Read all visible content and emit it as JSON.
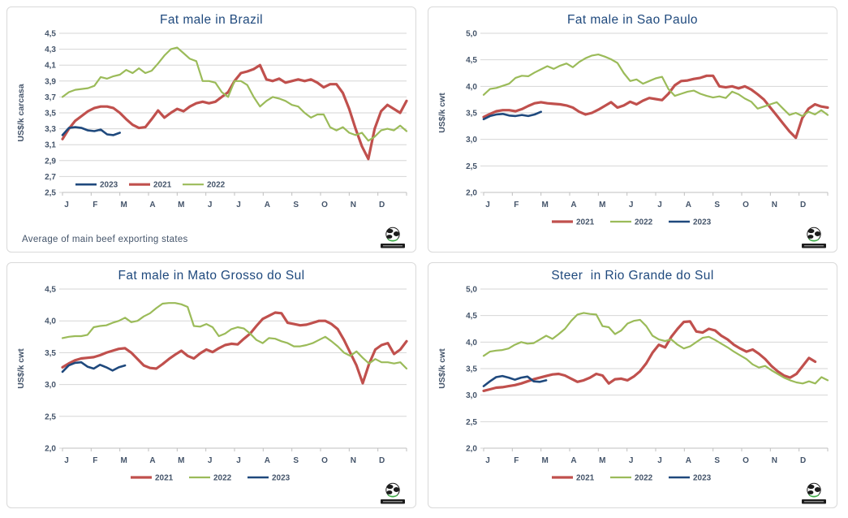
{
  "footnote": "Average of main beef exporting states",
  "colors": {
    "2021": "#c0504d",
    "2022": "#9bbb59",
    "2023": "#1f497d",
    "grid": "#d6d6d6",
    "axis_line": "#bfbfbf",
    "axis_text": "#44546a",
    "title_text": "#1f497d",
    "panel_border": "#d9d9d9",
    "logo_banner": "#1c1c1c",
    "logo_green": "#3fae49"
  },
  "months": [
    "J",
    "F",
    "M",
    "A",
    "M",
    "J",
    "J",
    "A",
    "S",
    "O",
    "N",
    "D"
  ],
  "chart_data": [
    {
      "type": "line",
      "title": "Fat male in Brazil",
      "ylabel": "US$/k carcasa",
      "ylim": [
        2.5,
        4.5
      ],
      "ytick_step": 0.2,
      "yticks": [
        "2,5",
        "2,7",
        "2,9",
        "3,1",
        "3,3",
        "3,5",
        "3,7",
        "3,9",
        "4,1",
        "4,3",
        "4,5"
      ],
      "grid": true,
      "legend_position": "inside-bottom-left",
      "legend": [
        "2023",
        "2021",
        "2022"
      ],
      "x_categories": [
        "J",
        "F",
        "M",
        "A",
        "M",
        "J",
        "J",
        "A",
        "S",
        "O",
        "N",
        "D"
      ],
      "series": [
        {
          "name": "2021",
          "values": [
            3.17,
            3.3,
            3.4,
            3.46,
            3.52,
            3.56,
            3.58,
            3.58,
            3.56,
            3.5,
            3.42,
            3.35,
            3.31,
            3.32,
            3.42,
            3.53,
            3.44,
            3.5,
            3.55,
            3.52,
            3.58,
            3.62,
            3.64,
            3.62,
            3.64,
            3.7,
            3.76,
            3.9,
            4.0,
            4.02,
            4.05,
            4.1,
            3.92,
            3.9,
            3.93,
            3.88,
            3.9,
            3.92,
            3.9,
            3.92,
            3.88,
            3.82,
            3.86,
            3.86,
            3.75,
            3.55,
            3.3,
            3.08,
            2.92,
            3.3,
            3.52,
            3.6,
            3.55,
            3.5,
            3.65
          ]
        },
        {
          "name": "2022",
          "values": [
            3.7,
            3.76,
            3.79,
            3.8,
            3.81,
            3.84,
            3.95,
            3.93,
            3.96,
            3.98,
            4.04,
            4.0,
            4.06,
            4.0,
            4.03,
            4.12,
            4.22,
            4.3,
            4.32,
            4.25,
            4.18,
            4.15,
            3.9,
            3.9,
            3.88,
            3.76,
            3.7,
            3.9,
            3.9,
            3.85,
            3.7,
            3.58,
            3.65,
            3.7,
            3.68,
            3.65,
            3.6,
            3.58,
            3.5,
            3.44,
            3.48,
            3.48,
            3.32,
            3.28,
            3.32,
            3.25,
            3.22,
            3.25,
            3.15,
            3.2,
            3.28,
            3.3,
            3.28,
            3.34,
            3.27
          ]
        },
        {
          "name": "2023",
          "values": [
            3.22,
            3.31,
            3.32,
            3.31,
            3.28,
            3.27,
            3.29,
            3.23,
            3.22,
            3.25
          ]
        }
      ]
    },
    {
      "type": "line",
      "title": "Fat male in Sao Paulo",
      "ylabel": "US$/k cwt",
      "ylim": [
        2.0,
        5.0
      ],
      "ytick_step": 0.5,
      "yticks": [
        "2,0",
        "2,5",
        "3,0",
        "3,5",
        "4,0",
        "4,5",
        "5,0"
      ],
      "grid": true,
      "legend_position": "below-center",
      "legend": [
        "2021",
        "2022",
        "2023"
      ],
      "x_categories": [
        "J",
        "F",
        "M",
        "A",
        "M",
        "J",
        "J",
        "A",
        "S",
        "O",
        "N",
        "D"
      ],
      "series": [
        {
          "name": "2021",
          "values": [
            3.42,
            3.48,
            3.53,
            3.55,
            3.55,
            3.53,
            3.57,
            3.63,
            3.68,
            3.7,
            3.68,
            3.67,
            3.66,
            3.64,
            3.6,
            3.52,
            3.47,
            3.5,
            3.56,
            3.63,
            3.7,
            3.6,
            3.64,
            3.71,
            3.66,
            3.73,
            3.78,
            3.76,
            3.74,
            3.86,
            4.02,
            4.1,
            4.11,
            4.14,
            4.16,
            4.2,
            4.2,
            4.0,
            3.98,
            4.0,
            3.96,
            4.0,
            3.94,
            3.85,
            3.75,
            3.6,
            3.45,
            3.3,
            3.15,
            3.03,
            3.4,
            3.58,
            3.66,
            3.62,
            3.6
          ]
        },
        {
          "name": "2022",
          "values": [
            3.84,
            3.95,
            3.97,
            4.01,
            4.05,
            4.16,
            4.2,
            4.19,
            4.26,
            4.32,
            4.38,
            4.33,
            4.39,
            4.43,
            4.36,
            4.46,
            4.53,
            4.58,
            4.6,
            4.56,
            4.51,
            4.44,
            4.25,
            4.1,
            4.13,
            4.05,
            4.1,
            4.15,
            4.18,
            3.95,
            3.82,
            3.86,
            3.9,
            3.92,
            3.86,
            3.82,
            3.79,
            3.81,
            3.78,
            3.9,
            3.85,
            3.77,
            3.71,
            3.58,
            3.62,
            3.66,
            3.7,
            3.58,
            3.46,
            3.5,
            3.44,
            3.52,
            3.47,
            3.55,
            3.46
          ]
        },
        {
          "name": "2023",
          "values": [
            3.38,
            3.44,
            3.47,
            3.48,
            3.45,
            3.44,
            3.46,
            3.44,
            3.47,
            3.52
          ]
        }
      ]
    },
    {
      "type": "line",
      "title": "Fat male in Mato Grosso do Sul",
      "ylabel": "US$/k cwt",
      "ylim": [
        2.0,
        4.5
      ],
      "ytick_step": 0.5,
      "yticks": [
        "2,0",
        "2,5",
        "3,0",
        "3,5",
        "4,0",
        "4,5"
      ],
      "grid": true,
      "legend_position": "below-center",
      "legend": [
        "2021",
        "2022",
        "2023"
      ],
      "x_categories": [
        "J",
        "F",
        "M",
        "A",
        "M",
        "J",
        "J",
        "A",
        "S",
        "O",
        "N",
        "D"
      ],
      "series": [
        {
          "name": "2021",
          "values": [
            3.27,
            3.33,
            3.38,
            3.41,
            3.42,
            3.43,
            3.46,
            3.5,
            3.53,
            3.56,
            3.57,
            3.5,
            3.4,
            3.3,
            3.26,
            3.25,
            3.32,
            3.4,
            3.47,
            3.53,
            3.45,
            3.41,
            3.49,
            3.55,
            3.51,
            3.57,
            3.62,
            3.64,
            3.63,
            3.72,
            3.8,
            3.92,
            4.03,
            4.08,
            4.13,
            4.12,
            3.97,
            3.95,
            3.93,
            3.94,
            3.97,
            4.0,
            4.0,
            3.95,
            3.87,
            3.7,
            3.5,
            3.3,
            3.02,
            3.32,
            3.55,
            3.62,
            3.65,
            3.48,
            3.55,
            3.68
          ]
        },
        {
          "name": "2022",
          "values": [
            3.73,
            3.75,
            3.76,
            3.76,
            3.78,
            3.9,
            3.92,
            3.93,
            3.97,
            4.0,
            4.05,
            3.98,
            4.0,
            4.07,
            4.12,
            4.2,
            4.27,
            4.28,
            4.28,
            4.26,
            4.22,
            3.92,
            3.91,
            3.95,
            3.9,
            3.76,
            3.8,
            3.87,
            3.9,
            3.88,
            3.8,
            3.7,
            3.65,
            3.73,
            3.72,
            3.68,
            3.65,
            3.6,
            3.6,
            3.62,
            3.65,
            3.7,
            3.75,
            3.68,
            3.6,
            3.5,
            3.45,
            3.52,
            3.42,
            3.33,
            3.4,
            3.35,
            3.35,
            3.33,
            3.35,
            3.25
          ]
        },
        {
          "name": "2023",
          "values": [
            3.2,
            3.3,
            3.34,
            3.35,
            3.28,
            3.25,
            3.31,
            3.27,
            3.22,
            3.27,
            3.3
          ]
        }
      ]
    },
    {
      "type": "line",
      "title": "Steer  in Rio Grande do Sul",
      "ylabel": "US$/k cwt",
      "ylim": [
        2.0,
        5.0
      ],
      "ytick_step": 0.5,
      "yticks": [
        "2,0",
        "2,5",
        "3,0",
        "3,5",
        "4,0",
        "4,5",
        "5,0"
      ],
      "grid": true,
      "legend_position": "below-center",
      "legend": [
        "2021",
        "2022",
        "2023"
      ],
      "x_categories": [
        "J",
        "F",
        "M",
        "A",
        "M",
        "J",
        "J",
        "A",
        "S",
        "O",
        "N",
        "D"
      ],
      "series": [
        {
          "name": "2021",
          "values": [
            3.08,
            3.11,
            3.14,
            3.15,
            3.17,
            3.19,
            3.22,
            3.26,
            3.3,
            3.33,
            3.36,
            3.39,
            3.4,
            3.37,
            3.31,
            3.25,
            3.28,
            3.33,
            3.4,
            3.37,
            3.22,
            3.3,
            3.31,
            3.28,
            3.35,
            3.45,
            3.6,
            3.8,
            3.95,
            3.9,
            4.1,
            4.25,
            4.38,
            4.39,
            4.2,
            4.18,
            4.25,
            4.22,
            4.12,
            4.05,
            3.95,
            3.88,
            3.82,
            3.86,
            3.78,
            3.68,
            3.55,
            3.45,
            3.37,
            3.33,
            3.4,
            3.55,
            3.7,
            3.63
          ]
        },
        {
          "name": "2022",
          "values": [
            3.74,
            3.82,
            3.84,
            3.85,
            3.88,
            3.95,
            4.0,
            3.97,
            3.98,
            4.05,
            4.12,
            4.06,
            4.15,
            4.25,
            4.4,
            4.52,
            4.55,
            4.53,
            4.52,
            4.3,
            4.28,
            4.15,
            4.22,
            4.35,
            4.4,
            4.42,
            4.3,
            4.12,
            4.05,
            4.02,
            4.05,
            3.95,
            3.88,
            3.92,
            4.0,
            4.08,
            4.1,
            4.04,
            3.97,
            3.9,
            3.82,
            3.75,
            3.68,
            3.58,
            3.52,
            3.55,
            3.47,
            3.4,
            3.33,
            3.28,
            3.24,
            3.22,
            3.26,
            3.22,
            3.34,
            3.28
          ]
        },
        {
          "name": "2023",
          "values": [
            3.17,
            3.26,
            3.34,
            3.36,
            3.33,
            3.29,
            3.33,
            3.35,
            3.26,
            3.25,
            3.28
          ]
        }
      ]
    }
  ]
}
